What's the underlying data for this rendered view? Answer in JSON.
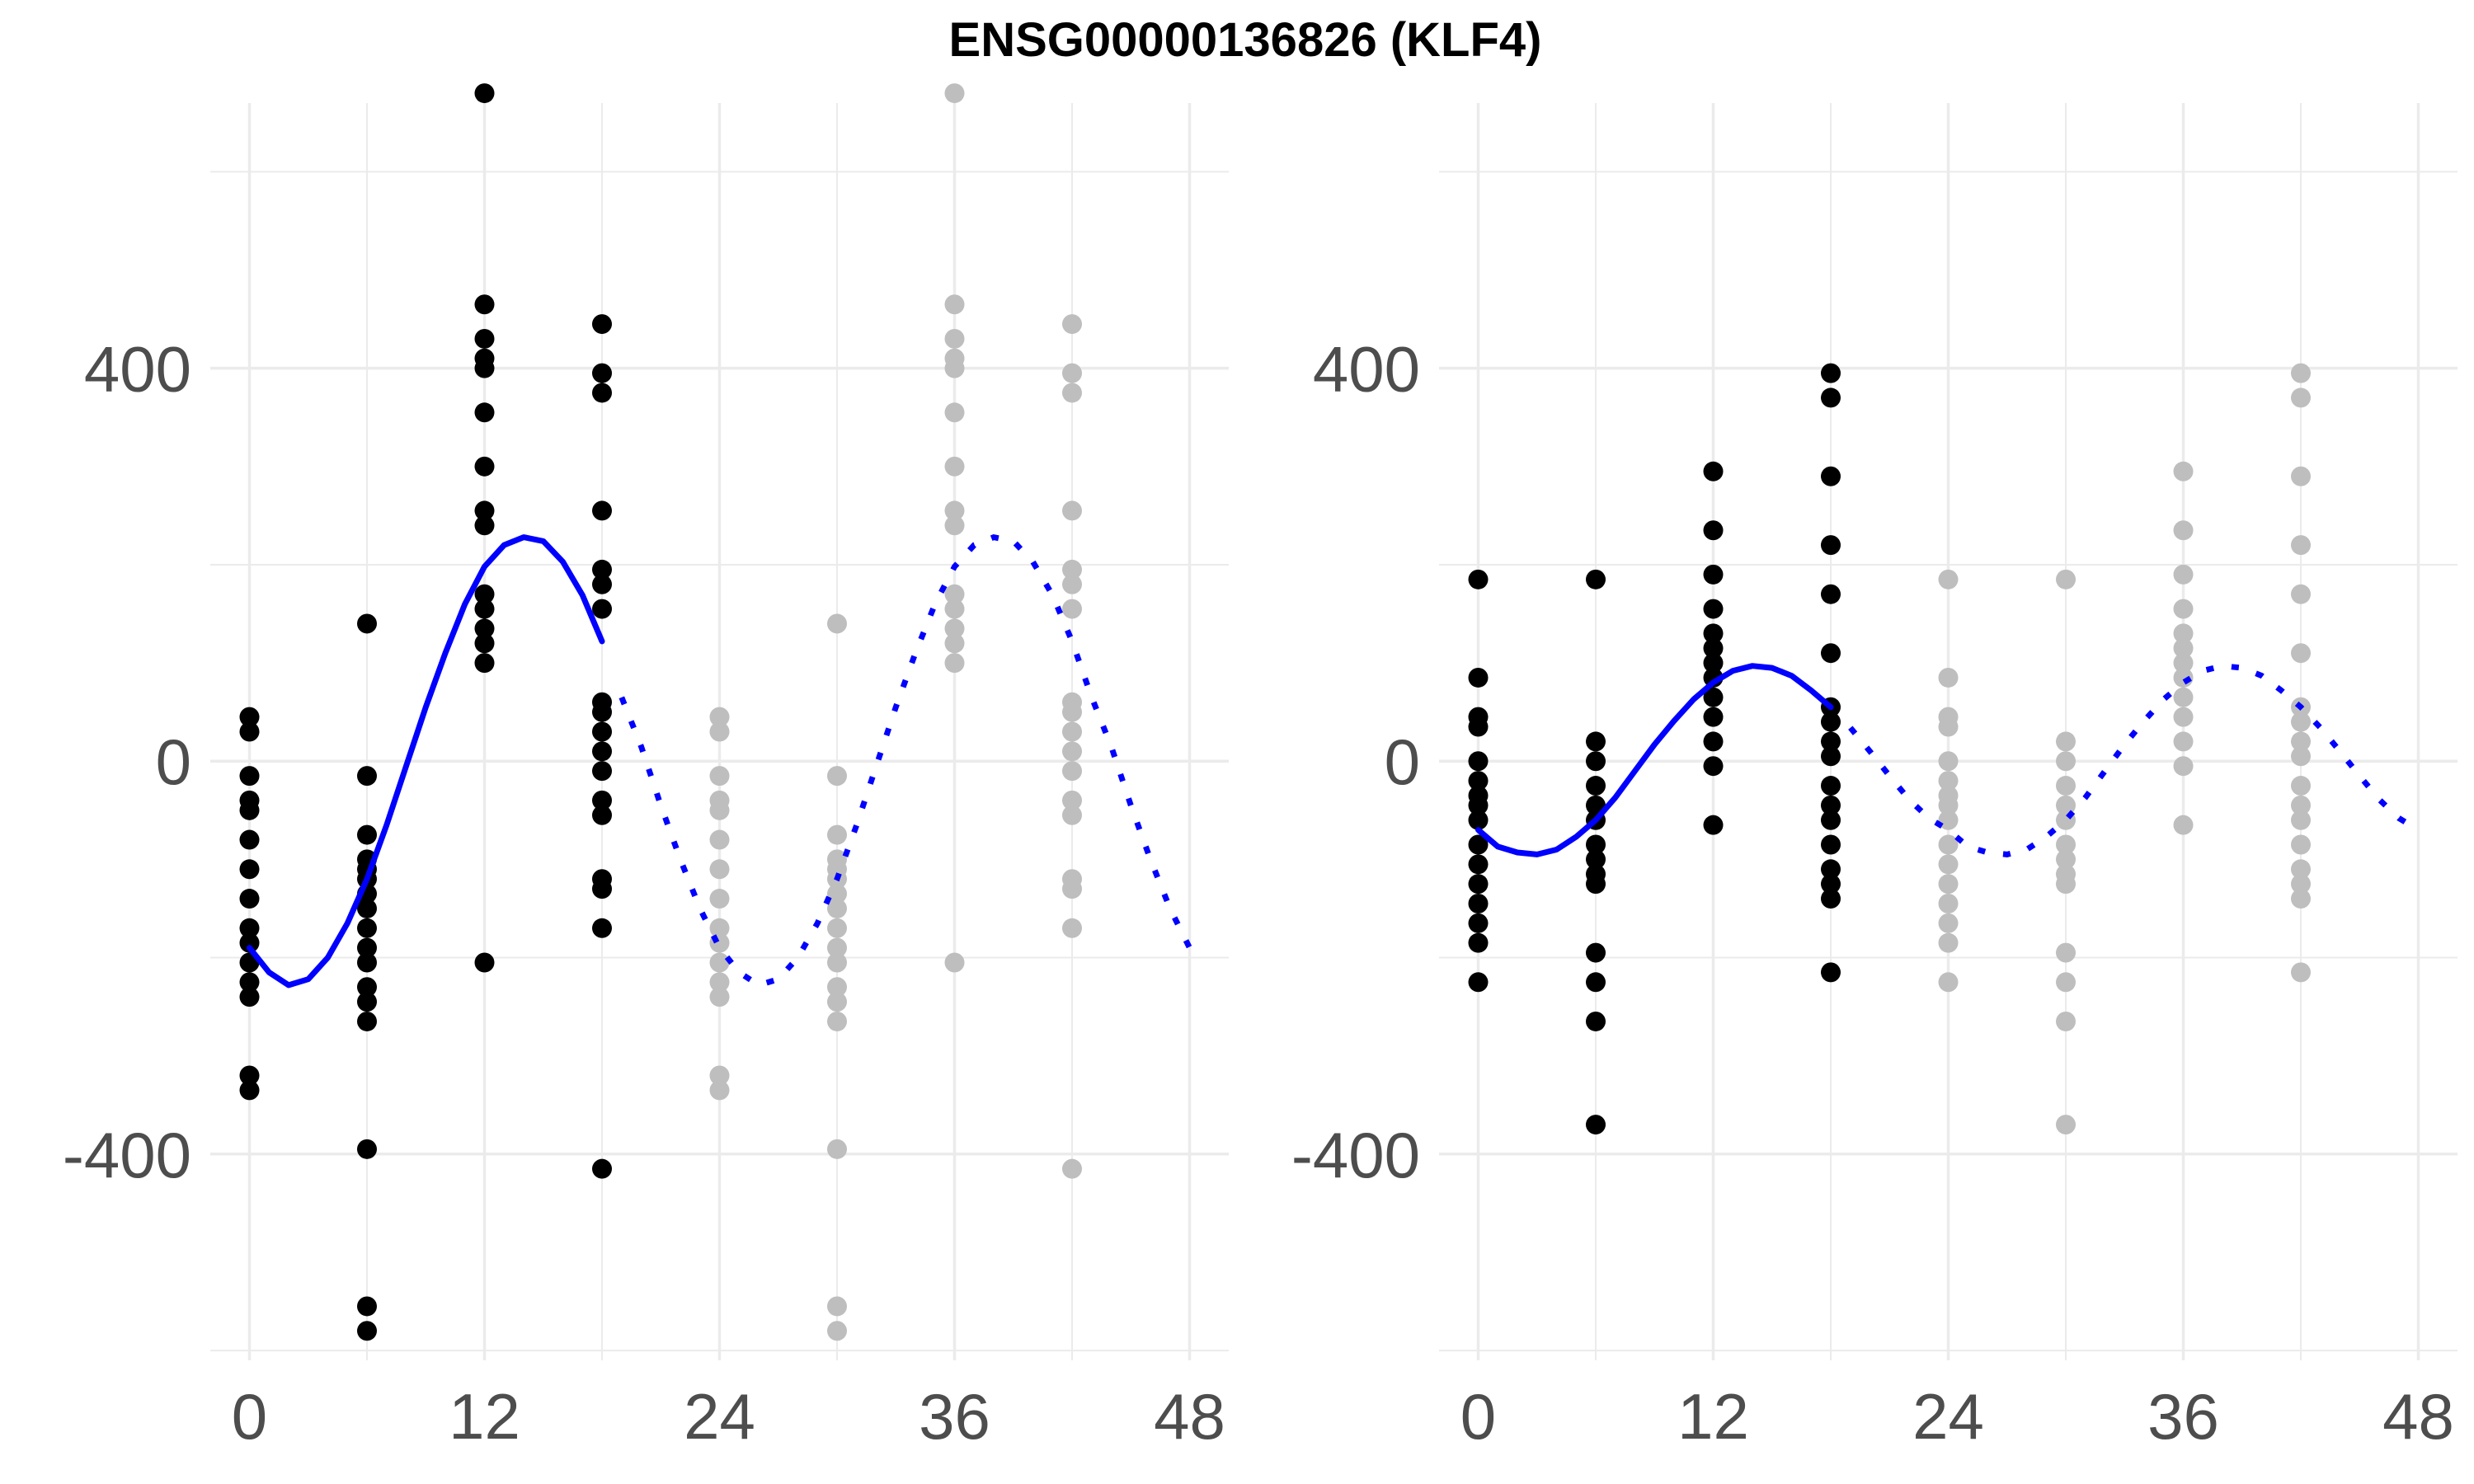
{
  "title": "ENSG00000136826 (KLF4)",
  "colors": {
    "observed_point": "#000000",
    "projected_point": "#bebebe",
    "fit_line": "#0000ff",
    "grid": "#ebebeb",
    "tick_text": "#4d4d4d"
  },
  "chart_data": [
    {
      "type": "scatter",
      "title": "",
      "xlabel": "",
      "ylabel": "",
      "grid": true,
      "xlim": [
        -2,
        50
      ],
      "ylim": [
        -610,
        670
      ],
      "x_ticks": [
        0,
        12,
        24,
        36,
        48
      ],
      "x_tick_labels": [
        "0",
        "12",
        "24",
        "36",
        "48"
      ],
      "y_ticks": [
        -400,
        0,
        400
      ],
      "y_tick_labels": [
        "-400",
        "0",
        "400"
      ],
      "observed_points": [
        {
          "x": 0,
          "values": [
            45,
            30,
            -15,
            -40,
            -50,
            -80,
            -110,
            -140,
            -170,
            -185,
            -205,
            -225,
            -240,
            -320,
            -335
          ]
        },
        {
          "x": 6,
          "values": [
            140,
            -15,
            -75,
            -100,
            -110,
            -120,
            -135,
            -150,
            -170,
            -190,
            -205,
            -230,
            -245,
            -265,
            -395,
            -555,
            -580
          ]
        },
        {
          "x": 12,
          "values": [
            680,
            465,
            430,
            410,
            400,
            355,
            300,
            255,
            240,
            170,
            155,
            135,
            120,
            100,
            -205
          ]
        },
        {
          "x": 18,
          "values": [
            445,
            395,
            375,
            255,
            195,
            180,
            155,
            60,
            50,
            30,
            10,
            -10,
            -40,
            -55,
            -120,
            -130,
            -170,
            -415
          ]
        }
      ],
      "projected_points": [
        {
          "x": 24,
          "values": [
            45,
            30,
            -15,
            -40,
            -50,
            -80,
            -110,
            -140,
            -170,
            -185,
            -205,
            -225,
            -240,
            -320,
            -335
          ]
        },
        {
          "x": 30,
          "values": [
            140,
            -15,
            -75,
            -100,
            -110,
            -120,
            -135,
            -150,
            -170,
            -190,
            -205,
            -230,
            -245,
            -265,
            -395,
            -555,
            -580
          ]
        },
        {
          "x": 36,
          "values": [
            680,
            465,
            430,
            410,
            400,
            355,
            300,
            255,
            240,
            170,
            155,
            135,
            120,
            100,
            -205
          ]
        },
        {
          "x": 42,
          "values": [
            445,
            395,
            375,
            255,
            195,
            180,
            155,
            60,
            50,
            30,
            10,
            -10,
            -40,
            -55,
            -120,
            -130,
            -170,
            -415
          ]
        }
      ],
      "fit_solid": [
        {
          "x": 0,
          "y": -190
        },
        {
          "x": 1,
          "y": -215
        },
        {
          "x": 2,
          "y": -228
        },
        {
          "x": 3,
          "y": -222
        },
        {
          "x": 4,
          "y": -200
        },
        {
          "x": 5,
          "y": -165
        },
        {
          "x": 6,
          "y": -120
        },
        {
          "x": 7,
          "y": -65
        },
        {
          "x": 8,
          "y": -5
        },
        {
          "x": 9,
          "y": 55
        },
        {
          "x": 10,
          "y": 110
        },
        {
          "x": 11,
          "y": 160
        },
        {
          "x": 12,
          "y": 198
        },
        {
          "x": 13,
          "y": 220
        },
        {
          "x": 14,
          "y": 228
        },
        {
          "x": 15,
          "y": 224
        },
        {
          "x": 16,
          "y": 203
        },
        {
          "x": 17,
          "y": 169
        },
        {
          "x": 18,
          "y": 122
        }
      ],
      "fit_dashed": [
        {
          "x": 19,
          "y": 65
        },
        {
          "x": 20,
          "y": 15
        },
        {
          "x": 21,
          "y": -45
        },
        {
          "x": 22,
          "y": -100
        },
        {
          "x": 23,
          "y": -150
        },
        {
          "x": 24,
          "y": -190
        },
        {
          "x": 25,
          "y": -215
        },
        {
          "x": 26,
          "y": -228
        },
        {
          "x": 27,
          "y": -222
        },
        {
          "x": 28,
          "y": -200
        },
        {
          "x": 29,
          "y": -165
        },
        {
          "x": 30,
          "y": -120
        },
        {
          "x": 31,
          "y": -65
        },
        {
          "x": 32,
          "y": -5
        },
        {
          "x": 33,
          "y": 55
        },
        {
          "x": 34,
          "y": 110
        },
        {
          "x": 35,
          "y": 160
        },
        {
          "x": 36,
          "y": 198
        },
        {
          "x": 37,
          "y": 220
        },
        {
          "x": 38,
          "y": 228
        },
        {
          "x": 39,
          "y": 224
        },
        {
          "x": 40,
          "y": 203
        },
        {
          "x": 41,
          "y": 169
        },
        {
          "x": 42,
          "y": 122
        },
        {
          "x": 43,
          "y": 65
        },
        {
          "x": 44,
          "y": 15
        },
        {
          "x": 45,
          "y": -45
        },
        {
          "x": 46,
          "y": -100
        },
        {
          "x": 47,
          "y": -150
        },
        {
          "x": 48,
          "y": -190
        }
      ]
    },
    {
      "type": "scatter",
      "title": "",
      "xlabel": "",
      "ylabel": "",
      "grid": true,
      "xlim": [
        -2,
        50
      ],
      "ylim": [
        -610,
        670
      ],
      "x_ticks": [
        0,
        12,
        24,
        36,
        48
      ],
      "x_tick_labels": [
        "0",
        "12",
        "24",
        "36",
        "48"
      ],
      "y_ticks": [
        -400,
        0,
        400
      ],
      "y_tick_labels": [
        "-400",
        "0",
        "400"
      ],
      "observed_points": [
        {
          "x": 0,
          "values": [
            185,
            85,
            45,
            35,
            0,
            -20,
            -35,
            -45,
            -60,
            -85,
            -105,
            -125,
            -145,
            -165,
            -185,
            -225
          ]
        },
        {
          "x": 6,
          "values": [
            185,
            20,
            0,
            -25,
            -45,
            -60,
            -85,
            -100,
            -115,
            -125,
            -195,
            -225,
            -265,
            -370
          ]
        },
        {
          "x": 12,
          "values": [
            295,
            235,
            190,
            155,
            130,
            115,
            100,
            85,
            65,
            45,
            20,
            -5,
            -65
          ]
        },
        {
          "x": 18,
          "values": [
            395,
            370,
            290,
            220,
            170,
            110,
            55,
            40,
            20,
            5,
            -25,
            -45,
            -60,
            -85,
            -110,
            -125,
            -140,
            -215
          ]
        }
      ],
      "projected_points": [
        {
          "x": 24,
          "values": [
            185,
            85,
            45,
            35,
            0,
            -20,
            -35,
            -45,
            -60,
            -85,
            -105,
            -125,
            -145,
            -165,
            -185,
            -225
          ]
        },
        {
          "x": 30,
          "values": [
            185,
            20,
            0,
            -25,
            -45,
            -60,
            -85,
            -100,
            -115,
            -125,
            -195,
            -225,
            -265,
            -370
          ]
        },
        {
          "x": 36,
          "values": [
            295,
            235,
            190,
            155,
            130,
            115,
            100,
            85,
            65,
            45,
            20,
            -5,
            -65
          ]
        },
        {
          "x": 42,
          "values": [
            395,
            370,
            290,
            220,
            170,
            110,
            55,
            40,
            20,
            5,
            -25,
            -45,
            -60,
            -85,
            -110,
            -125,
            -140,
            -215
          ]
        }
      ],
      "fit_solid": [
        {
          "x": 0,
          "y": -70
        },
        {
          "x": 1,
          "y": -87
        },
        {
          "x": 2,
          "y": -93
        },
        {
          "x": 3,
          "y": -95
        },
        {
          "x": 4,
          "y": -90
        },
        {
          "x": 5,
          "y": -77
        },
        {
          "x": 6,
          "y": -60
        },
        {
          "x": 7,
          "y": -37
        },
        {
          "x": 8,
          "y": -10
        },
        {
          "x": 9,
          "y": 17
        },
        {
          "x": 10,
          "y": 41
        },
        {
          "x": 11,
          "y": 63
        },
        {
          "x": 12,
          "y": 80
        },
        {
          "x": 13,
          "y": 92
        },
        {
          "x": 14,
          "y": 97
        },
        {
          "x": 15,
          "y": 95
        },
        {
          "x": 16,
          "y": 87
        },
        {
          "x": 17,
          "y": 72
        },
        {
          "x": 18,
          "y": 55
        }
      ],
      "fit_dashed": [
        {
          "x": 19,
          "y": 34
        },
        {
          "x": 20,
          "y": 10
        },
        {
          "x": 21,
          "y": -15
        },
        {
          "x": 22,
          "y": -39
        },
        {
          "x": 23,
          "y": -58
        },
        {
          "x": 24,
          "y": -70
        },
        {
          "x": 25,
          "y": -87
        },
        {
          "x": 26,
          "y": -93
        },
        {
          "x": 27,
          "y": -95
        },
        {
          "x": 28,
          "y": -90
        },
        {
          "x": 29,
          "y": -77
        },
        {
          "x": 30,
          "y": -60
        },
        {
          "x": 31,
          "y": -37
        },
        {
          "x": 32,
          "y": -10
        },
        {
          "x": 33,
          "y": 17
        },
        {
          "x": 34,
          "y": 41
        },
        {
          "x": 35,
          "y": 63
        },
        {
          "x": 36,
          "y": 80
        },
        {
          "x": 37,
          "y": 92
        },
        {
          "x": 38,
          "y": 97
        },
        {
          "x": 39,
          "y": 95
        },
        {
          "x": 40,
          "y": 87
        },
        {
          "x": 41,
          "y": 72
        },
        {
          "x": 42,
          "y": 55
        },
        {
          "x": 43,
          "y": 34
        },
        {
          "x": 44,
          "y": 10
        },
        {
          "x": 45,
          "y": -15
        },
        {
          "x": 46,
          "y": -39
        },
        {
          "x": 47,
          "y": -58
        },
        {
          "x": 48,
          "y": -70
        }
      ]
    }
  ]
}
